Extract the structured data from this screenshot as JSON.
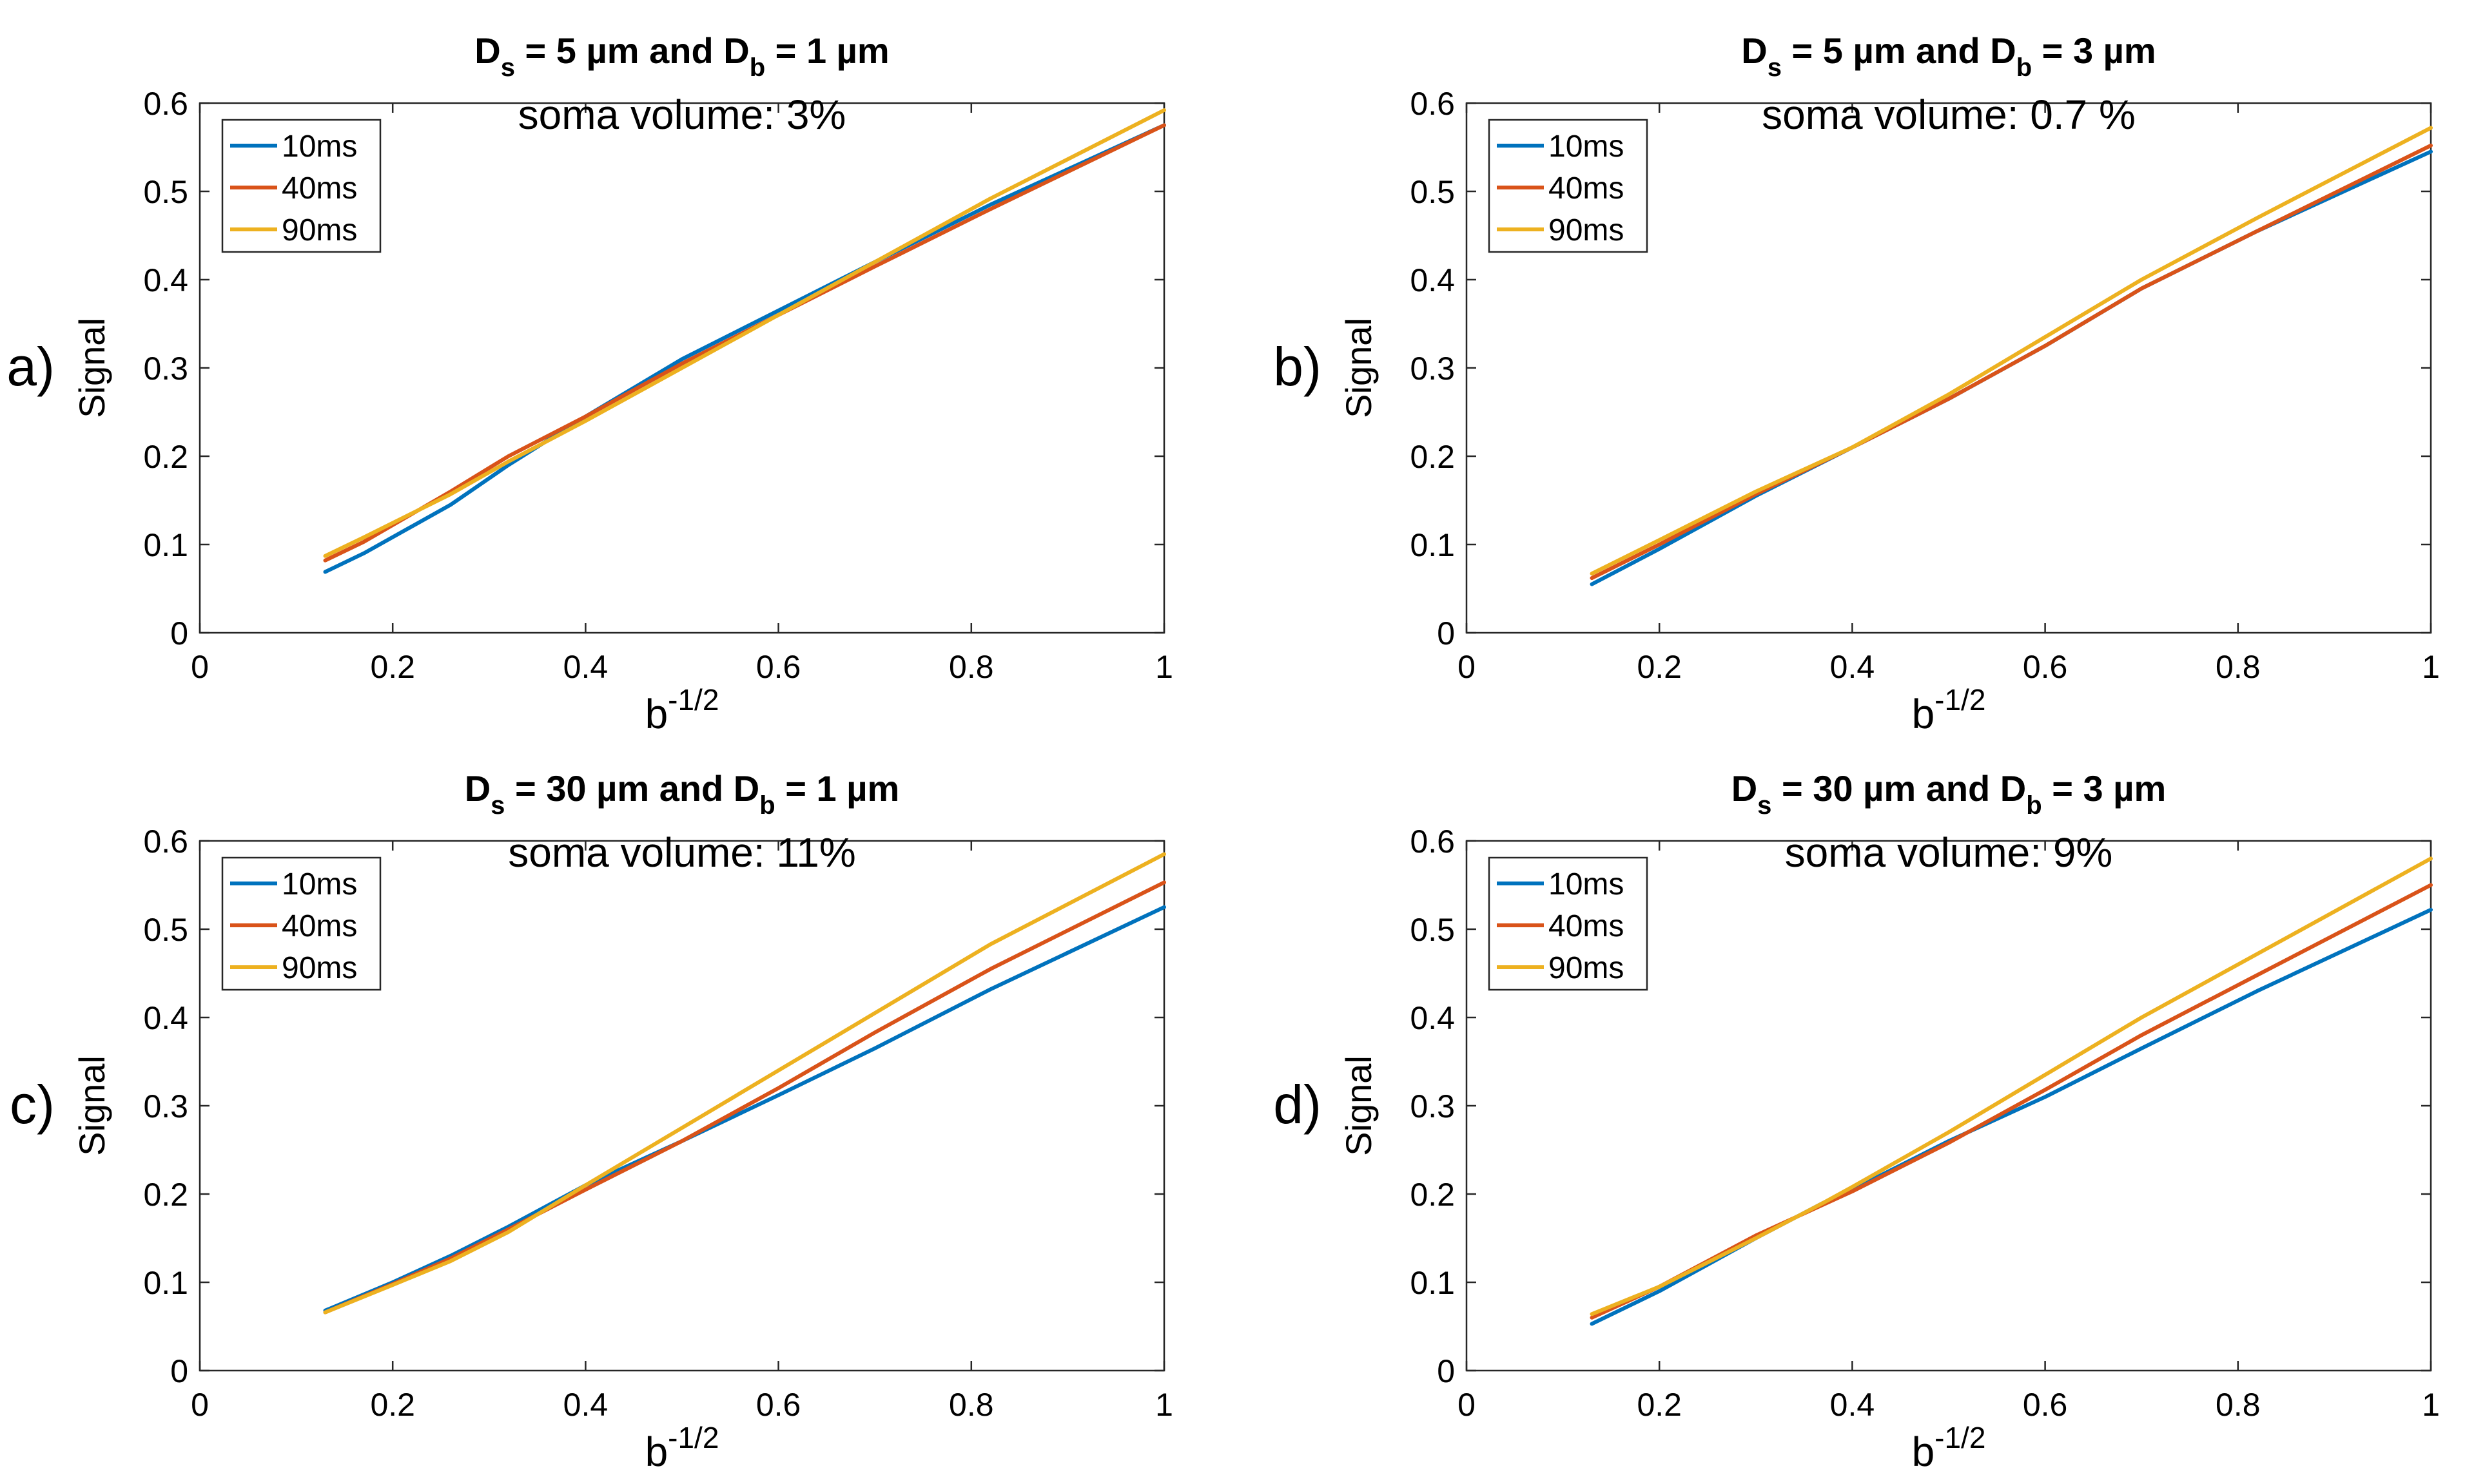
{
  "colors": {
    "s10": "#0072BD",
    "s40": "#D95319",
    "s90": "#EDB120",
    "axis": "#262626"
  },
  "chart_data": [
    {
      "type": "line",
      "panel_label": "a)",
      "title": {
        "d": "D",
        "s": "s",
        "mid": " = 5 µm and D",
        "b": "b",
        "end": " = 1 µm"
      },
      "subtitle": "soma volume: 3%",
      "xlabel": {
        "base": "b",
        "sup": "-1/2"
      },
      "ylabel": "Signal",
      "xlim": [
        0,
        1
      ],
      "ylim": [
        0,
        0.6
      ],
      "xticks": [
        "0",
        "0.2",
        "0.4",
        "0.6",
        "0.8",
        "1"
      ],
      "yticks": [
        "0",
        "0.1",
        "0.2",
        "0.3",
        "0.4",
        "0.5",
        "0.6"
      ],
      "x": [
        0.13,
        0.17,
        0.26,
        0.32,
        0.4,
        0.5,
        0.6,
        0.7,
        0.82,
        1.0
      ],
      "series": [
        {
          "name": "10ms",
          "color_key": "s10",
          "values": [
            0.069,
            0.09,
            0.145,
            0.19,
            0.245,
            0.31,
            0.365,
            0.42,
            0.485,
            0.575
          ]
        },
        {
          "name": "40ms",
          "color_key": "s40",
          "values": [
            0.082,
            0.103,
            0.16,
            0.2,
            0.245,
            0.305,
            0.36,
            0.415,
            0.48,
            0.575
          ]
        },
        {
          "name": "90ms",
          "color_key": "s90",
          "values": [
            0.087,
            0.108,
            0.157,
            0.194,
            0.24,
            0.3,
            0.36,
            0.42,
            0.492,
            0.592
          ]
        }
      ],
      "legend_position": "top-left"
    },
    {
      "type": "line",
      "panel_label": "b)",
      "title": {
        "d": "D",
        "s": "s",
        "mid": " = 5 µm and D",
        "b": "b",
        "end": " = 3 µm"
      },
      "subtitle": "soma volume: 0.7 %",
      "xlabel": {
        "base": "b",
        "sup": "-1/2"
      },
      "ylabel": "Signal",
      "xlim": [
        0,
        1
      ],
      "ylim": [
        0,
        0.6
      ],
      "xticks": [
        "0",
        "0.2",
        "0.4",
        "0.6",
        "0.8",
        "1"
      ],
      "yticks": [
        "0",
        "0.1",
        "0.2",
        "0.3",
        "0.4",
        "0.5",
        "0.6"
      ],
      "x": [
        0.13,
        0.2,
        0.3,
        0.4,
        0.5,
        0.6,
        0.7,
        0.82,
        1.0
      ],
      "series": [
        {
          "name": "10ms",
          "color_key": "s10",
          "values": [
            0.055,
            0.095,
            0.155,
            0.21,
            0.265,
            0.325,
            0.39,
            0.455,
            0.545
          ]
        },
        {
          "name": "40ms",
          "color_key": "s40",
          "values": [
            0.062,
            0.1,
            0.157,
            0.21,
            0.265,
            0.325,
            0.39,
            0.455,
            0.552
          ]
        },
        {
          "name": "90ms",
          "color_key": "s90",
          "values": [
            0.067,
            0.105,
            0.16,
            0.21,
            0.27,
            0.335,
            0.4,
            0.47,
            0.572
          ]
        }
      ],
      "legend_position": "top-left"
    },
    {
      "type": "line",
      "panel_label": "c)",
      "title": {
        "d": "D",
        "s": "s",
        "mid": " = 30 µm and D",
        "b": "b",
        "end": " = 1 µm"
      },
      "subtitle": "soma volume: 11%",
      "xlabel": {
        "base": "b",
        "sup": "-1/2"
      },
      "ylabel": "Signal",
      "xlim": [
        0,
        1
      ],
      "ylim": [
        0,
        0.6
      ],
      "xticks": [
        "0",
        "0.2",
        "0.4",
        "0.6",
        "0.8",
        "1"
      ],
      "yticks": [
        "0",
        "0.1",
        "0.2",
        "0.3",
        "0.4",
        "0.5",
        "0.6"
      ],
      "x": [
        0.13,
        0.2,
        0.26,
        0.32,
        0.4,
        0.5,
        0.6,
        0.7,
        0.82,
        1.0
      ],
      "series": [
        {
          "name": "10ms",
          "color_key": "s10",
          "values": [
            0.068,
            0.1,
            0.13,
            0.163,
            0.21,
            0.26,
            0.312,
            0.365,
            0.432,
            0.525
          ]
        },
        {
          "name": "40ms",
          "color_key": "s40",
          "values": [
            0.066,
            0.098,
            0.127,
            0.16,
            0.205,
            0.26,
            0.32,
            0.383,
            0.455,
            0.553
          ]
        },
        {
          "name": "90ms",
          "color_key": "s90",
          "values": [
            0.066,
            0.097,
            0.124,
            0.157,
            0.21,
            0.275,
            0.34,
            0.405,
            0.483,
            0.585
          ]
        }
      ],
      "legend_position": "top-left"
    },
    {
      "type": "line",
      "panel_label": "d)",
      "title": {
        "d": "D",
        "s": "s",
        "mid": " = 30 µm and D",
        "b": "b",
        "end": " = 3 µm"
      },
      "subtitle": "soma volume: 9%",
      "xlabel": {
        "base": "b",
        "sup": "-1/2"
      },
      "ylabel": "Signal",
      "xlim": [
        0,
        1
      ],
      "ylim": [
        0,
        0.6
      ],
      "xticks": [
        "0",
        "0.2",
        "0.4",
        "0.6",
        "0.8",
        "1"
      ],
      "yticks": [
        "0",
        "0.1",
        "0.2",
        "0.3",
        "0.4",
        "0.5",
        "0.6"
      ],
      "x": [
        0.13,
        0.2,
        0.3,
        0.37,
        0.4,
        0.5,
        0.6,
        0.7,
        0.82,
        1.0
      ],
      "series": [
        {
          "name": "10ms",
          "color_key": "s10",
          "values": [
            0.053,
            0.09,
            0.15,
            0.19,
            0.205,
            0.26,
            0.31,
            0.365,
            0.43,
            0.522
          ]
        },
        {
          "name": "40ms",
          "color_key": "s40",
          "values": [
            0.06,
            0.095,
            0.153,
            0.188,
            0.203,
            0.258,
            0.318,
            0.38,
            0.448,
            0.55
          ]
        },
        {
          "name": "90ms",
          "color_key": "s90",
          "values": [
            0.064,
            0.095,
            0.15,
            0.19,
            0.208,
            0.27,
            0.335,
            0.4,
            0.472,
            0.58
          ]
        }
      ],
      "legend_position": "top-left"
    }
  ]
}
